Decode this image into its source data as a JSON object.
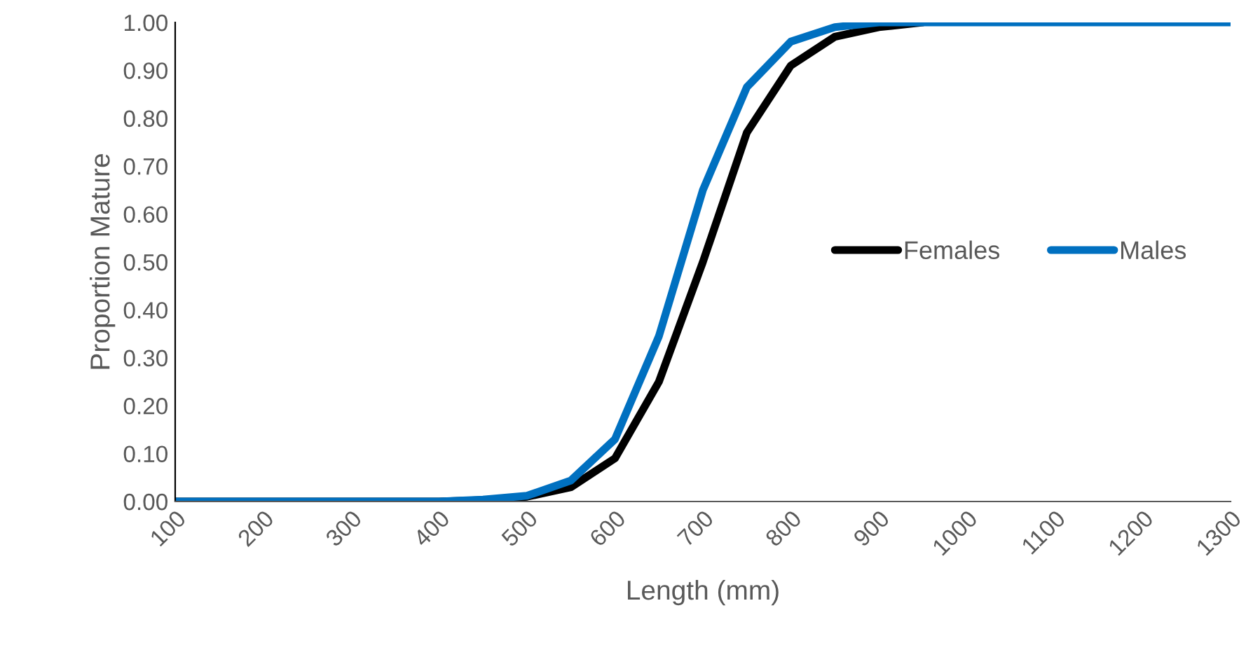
{
  "chart_data": {
    "type": "line",
    "xlabel": "Length (mm)",
    "ylabel": "Proportion Mature",
    "x": [
      100,
      150,
      200,
      250,
      300,
      350,
      400,
      450,
      500,
      550,
      600,
      650,
      700,
      750,
      800,
      850,
      900,
      950,
      1000,
      1050,
      1100,
      1150,
      1200,
      1250,
      1300
    ],
    "series": [
      {
        "name": "Females",
        "color": "#000000",
        "values": [
          0,
          0,
          0,
          0,
          0,
          0,
          0,
          0.003,
          0.01,
          0.03,
          0.09,
          0.25,
          0.5,
          0.77,
          0.91,
          0.97,
          0.99,
          1,
          null,
          null,
          null,
          null,
          null,
          null,
          null
        ]
      },
      {
        "name": "Males",
        "color": "#0070c0",
        "values": [
          0,
          0,
          0,
          0,
          0,
          0,
          0,
          0.004,
          0.012,
          0.044,
          0.13,
          0.345,
          0.65,
          0.865,
          0.96,
          0.99,
          1,
          1,
          1,
          1,
          1,
          1,
          1,
          1,
          1
        ]
      }
    ],
    "xlim": [
      100,
      1300
    ],
    "xticks": [
      100,
      200,
      300,
      400,
      500,
      600,
      700,
      800,
      900,
      1000,
      1100,
      1200,
      1300
    ],
    "ylim": [
      0,
      1
    ],
    "yticks": [
      {
        "value": 0,
        "label": "0.00"
      },
      {
        "value": 0.1,
        "label": "0.10"
      },
      {
        "value": 0.2,
        "label": "0.20"
      },
      {
        "value": 0.3,
        "label": "0.30"
      },
      {
        "value": 0.4,
        "label": "0.40"
      },
      {
        "value": 0.5,
        "label": "0.50"
      },
      {
        "value": 0.6,
        "label": "0.60"
      },
      {
        "value": 0.7,
        "label": "0.70"
      },
      {
        "value": 0.8,
        "label": "0.80"
      },
      {
        "value": 0.9,
        "label": "0.90"
      },
      {
        "value": 1,
        "label": "1.00"
      }
    ],
    "grid": false,
    "legend": "right",
    "line_style": "solid",
    "marker": "none"
  }
}
